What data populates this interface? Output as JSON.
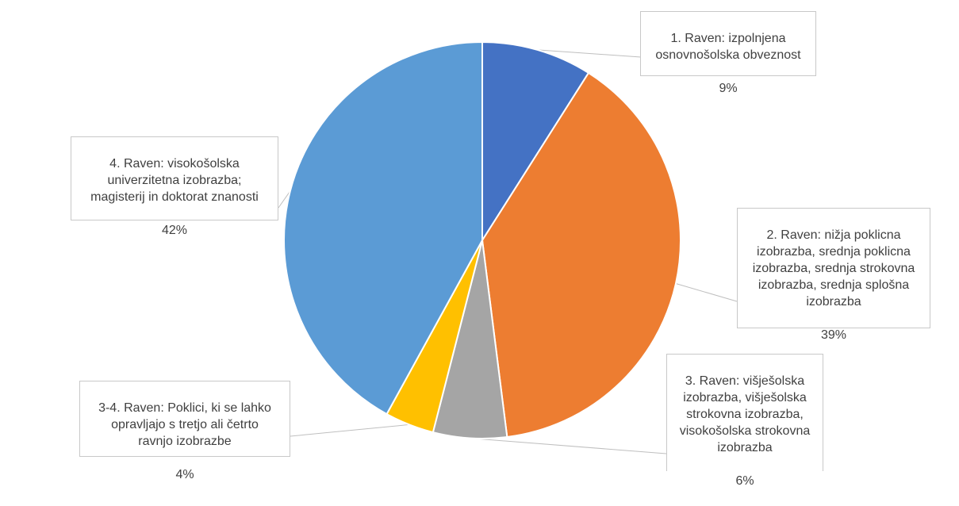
{
  "chart_data": {
    "type": "pie",
    "title": "",
    "start_angle_deg": 0,
    "direction": "clockwise",
    "slices": [
      {
        "label": "1. Raven: izpolnjena\nosnovnošolska obveznost",
        "value": 9,
        "pct_text": "9%",
        "color": "#4472C4"
      },
      {
        "label": "2. Raven: nižja poklicna\nizobrazba, srednja poklicna\nizobrazba, srednja strokovna\nizobrazba, srednja splošna\nizobrazba",
        "value": 39,
        "pct_text": "39%",
        "color": "#ED7D31"
      },
      {
        "label": "3. Raven: višješolska\nizobrazba, višješolska\nstrokovna izobrazba,\nvisokošolska strokovna\nizobrazba",
        "value": 6,
        "pct_text": "6%",
        "color": "#A5A5A5"
      },
      {
        "label": "3-4. Raven: Poklici, ki se lahko\nopravljajo s tretjo ali četrto\nravnjo izobrazbe",
        "value": 4,
        "pct_text": "4%",
        "color": "#FFC000"
      },
      {
        "label": "4. Raven: visokošolska\nuniverzitetna izobrazba;\nmagisterij in doktorat znanosti",
        "value": 42,
        "pct_text": "42%",
        "color": "#5B9BD5"
      }
    ]
  }
}
